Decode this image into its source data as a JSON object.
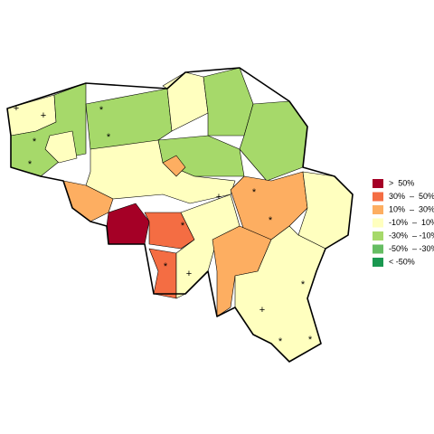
{
  "legend": [
    {
      "label": ">  50%",
      "color": "#a50026"
    },
    {
      "label": "30%  –  50%",
      "color": "#f46d43"
    },
    {
      "label": "10%  –  30%",
      "color": "#fdae61"
    },
    {
      "label": "-10%  –  10%",
      "color": "#ffffbf"
    },
    {
      "label": "-30%  – -10%",
      "color": "#a6d96a"
    },
    {
      "label": "-50%  – -30%",
      "color": "#66bd63"
    },
    {
      "label": "< -50%",
      "color": "#1a9850"
    }
  ],
  "markers": [
    "+",
    "+",
    "+",
    "+",
    "+",
    "*",
    "*",
    "*",
    "*",
    "*",
    "*",
    "*",
    "*",
    "*",
    "*",
    "*"
  ]
}
